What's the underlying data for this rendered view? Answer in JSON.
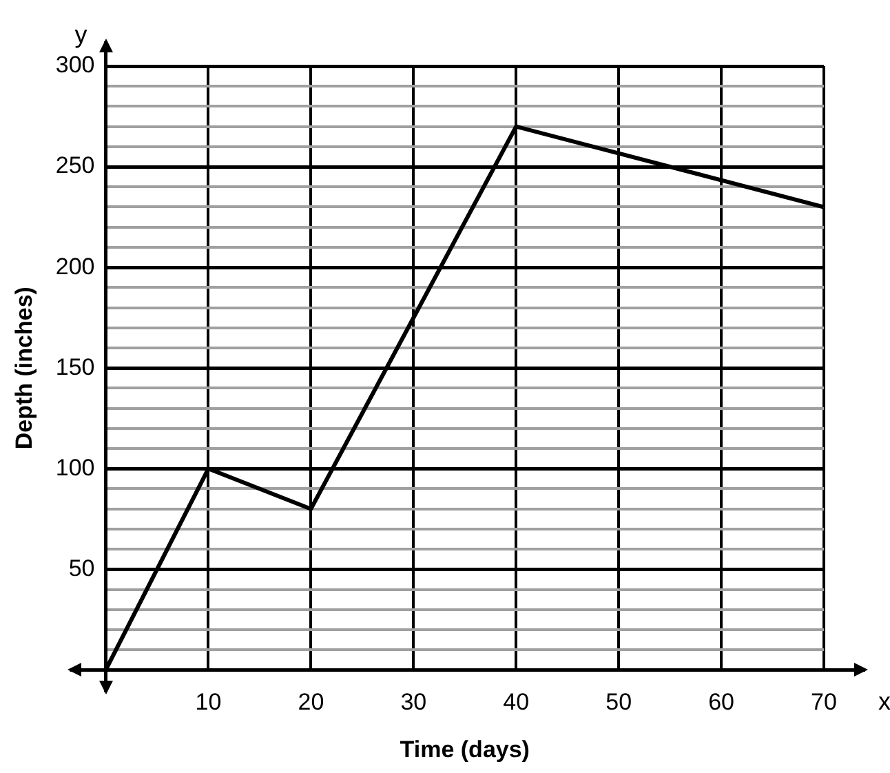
{
  "chart_data": {
    "type": "line",
    "xlabel": "Time (days)",
    "ylabel": "Depth (inches)",
    "annotations": [
      "x",
      "y"
    ],
    "x": [
      0,
      10,
      20,
      40,
      70
    ],
    "series": [
      {
        "color": "#000000",
        "values": [
          0,
          100,
          80,
          270,
          230
        ]
      }
    ],
    "xlim": [
      0,
      70
    ],
    "ylim": [
      0,
      300
    ],
    "xticks": [
      {
        "value": 0,
        "label": null
      },
      10,
      20,
      30,
      40,
      50,
      60,
      70
    ],
    "yticks": [
      {
        "value": 0,
        "label": null
      },
      {
        "value": 10,
        "label": null
      },
      {
        "value": 20,
        "label": null
      },
      {
        "value": 30,
        "label": null
      },
      {
        "value": 40,
        "label": null
      },
      50,
      {
        "value": 60,
        "label": null
      },
      {
        "value": 70,
        "label": null
      },
      {
        "value": 80,
        "label": null
      },
      {
        "value": 90,
        "label": null
      },
      100,
      {
        "value": 110,
        "label": null
      },
      {
        "value": 120,
        "label": null
      },
      {
        "value": 130,
        "label": null
      },
      {
        "value": 140,
        "label": null
      },
      150,
      {
        "value": 160,
        "label": null
      },
      {
        "value": 170,
        "label": null
      },
      {
        "value": 180,
        "label": null
      },
      {
        "value": 190,
        "label": null
      },
      200,
      {
        "value": 210,
        "label": null
      },
      {
        "value": 220,
        "label": null
      },
      {
        "value": 230,
        "label": null
      },
      {
        "value": 240,
        "label": null
      },
      250,
      {
        "value": 260,
        "label": null
      },
      {
        "value": 270,
        "label": null
      },
      {
        "value": 280,
        "label": null
      },
      {
        "value": 290,
        "label": null
      },
      300
    ],
    "grid": true,
    "legend": false,
    "marker": "none",
    "line_style": "solid"
  }
}
